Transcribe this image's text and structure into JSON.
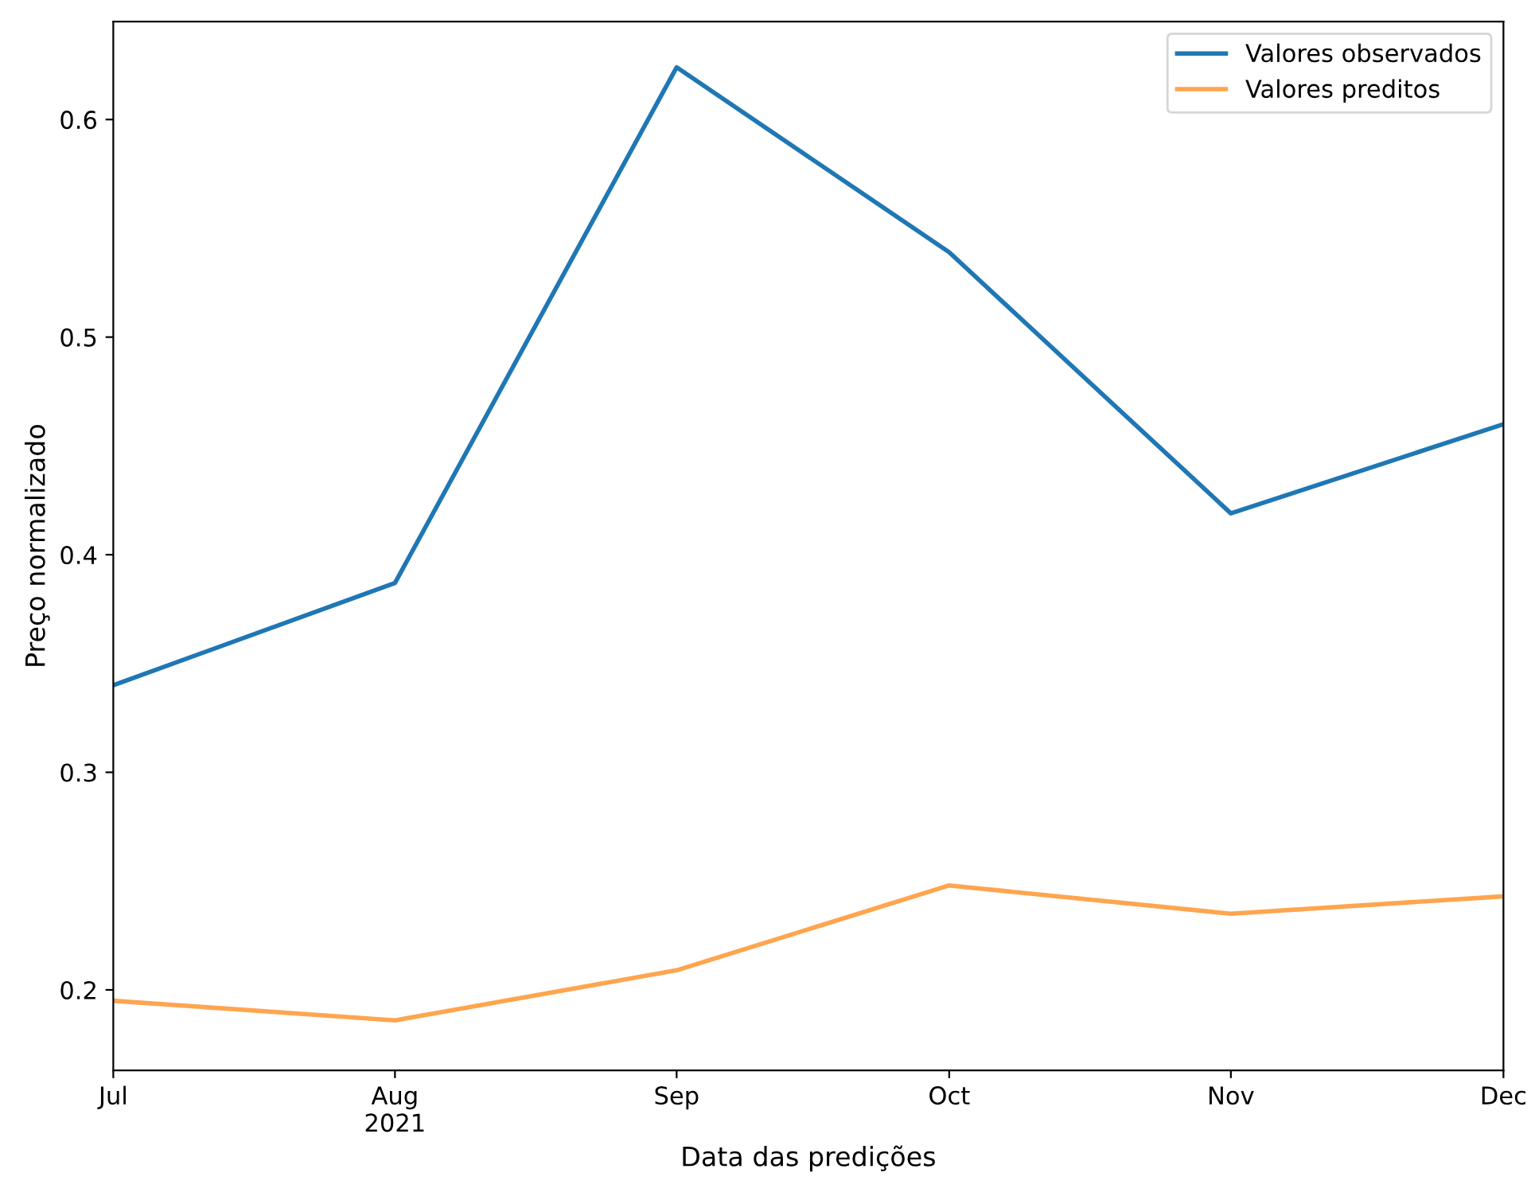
{
  "chart_data": {
    "type": "line",
    "xlabel": "Data das predições",
    "ylabel": "Preço normalizado",
    "x": [
      "2021-07",
      "2021-08",
      "2021-09",
      "2021-10",
      "2021-11",
      "2021-12"
    ],
    "series": [
      {
        "name": "Valores observados",
        "color": "#1f77b4",
        "values": [
          0.34,
          0.387,
          0.624,
          0.539,
          0.419,
          0.46
        ]
      },
      {
        "name": "Valores preditos",
        "color": "#ffa54f",
        "values": [
          0.195,
          0.186,
          0.209,
          0.248,
          0.235,
          0.243
        ]
      }
    ],
    "xlim": [
      "2021-07",
      "2021-12"
    ],
    "xticks": [
      {
        "value": "2021-07",
        "label": "Jul"
      },
      {
        "value": "2021-08",
        "label": "Aug\n2021"
      },
      {
        "value": "2021-09",
        "label": "Sep"
      },
      {
        "value": "2021-10",
        "label": "Oct"
      },
      {
        "value": "2021-11",
        "label": "Nov"
      },
      {
        "value": "2021-12",
        "label": "Dec"
      }
    ],
    "ylim": [
      0.163,
      0.645
    ],
    "yticks": [
      0.2,
      0.3,
      0.4,
      0.5,
      0.6
    ],
    "legend": "top right",
    "grid": false
  }
}
